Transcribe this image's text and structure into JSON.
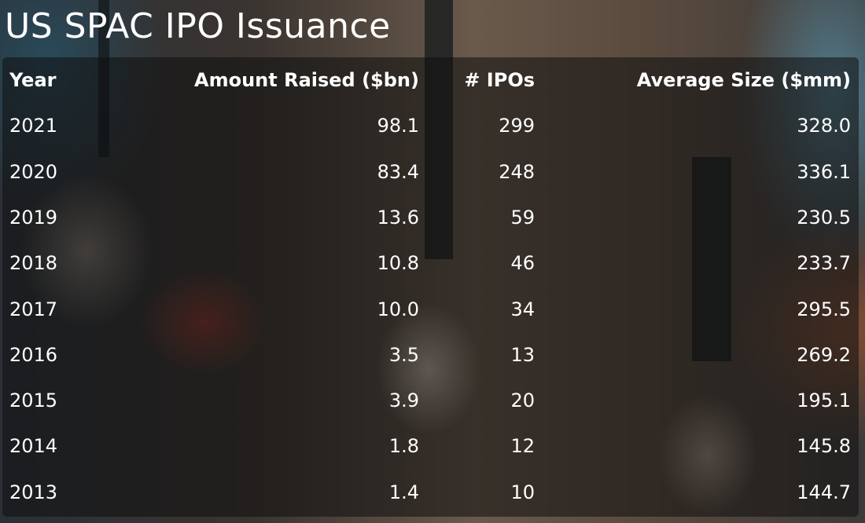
{
  "title": "US SPAC IPO Issuance",
  "table": {
    "columns": [
      "Year",
      "Amount Raised ($bn)",
      "# IPOs",
      "Average Size ($mm)"
    ],
    "rows": [
      [
        "2021",
        "98.1",
        "299",
        "328.0"
      ],
      [
        "2020",
        "83.4",
        "248",
        "336.1"
      ],
      [
        "2019",
        "13.6",
        "59",
        "230.5"
      ],
      [
        "2018",
        "10.8",
        "46",
        "233.7"
      ],
      [
        "2017",
        "10.0",
        "34",
        "295.5"
      ],
      [
        "2016",
        "3.5",
        "13",
        "269.2"
      ],
      [
        "2015",
        "3.9",
        "20",
        "195.1"
      ],
      [
        "2014",
        "1.8",
        "12",
        "145.8"
      ],
      [
        "2013",
        "1.4",
        "10",
        "144.7"
      ]
    ]
  }
}
